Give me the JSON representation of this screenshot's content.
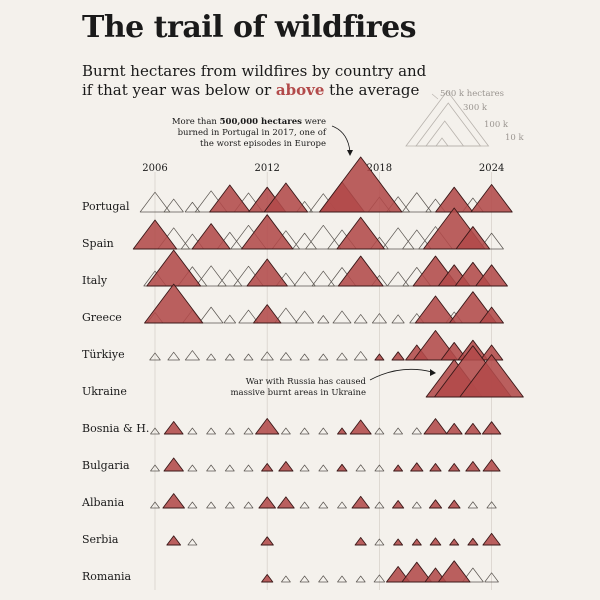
{
  "title": "The trail of wildfires",
  "subtitle_line1": "Burnt hectares from wildfires by country and",
  "subtitle_pre": "if that year was below or ",
  "subtitle_above": "above",
  "subtitle_post": " the average",
  "legend": {
    "items": [
      "500 k  hectares",
      "300 k",
      "100 k",
      "10 k"
    ],
    "values": [
      500000,
      300000,
      100000,
      10000
    ]
  },
  "annotations": [
    {
      "lines_pre": [
        "More than "
      ],
      "bold": "500,000 hectares",
      "lines_post": [
        " were",
        "burned in Portugal in 2017, one of",
        "the worst episodes in Europe"
      ]
    },
    {
      "lines": [
        "War with Russia has caused",
        "massive burnt areas in Ukraine"
      ]
    }
  ],
  "colors": {
    "above": "#b24a4a",
    "above_stroke": "#3a1818",
    "below_stroke": "#5a5550",
    "grid": "#d8d3cc"
  },
  "chart_data": {
    "type": "area",
    "x_ticks": [
      2006,
      2012,
      2018,
      2024
    ],
    "years": [
      2006,
      2007,
      2008,
      2009,
      2010,
      2011,
      2012,
      2013,
      2014,
      2015,
      2016,
      2017,
      2018,
      2019,
      2020,
      2021,
      2022,
      2023,
      2024
    ],
    "series": [
      {
        "name": "Portugal",
        "values": [
          70000,
          30000,
          17000,
          80000,
          130000,
          65000,
          110000,
          150000,
          20000,
          60000,
          160000,
          540000,
          40000,
          42000,
          67000,
          30000,
          110000,
          35000,
          135000
        ],
        "above": [
          0,
          0,
          0,
          0,
          1,
          0,
          1,
          1,
          0,
          0,
          1,
          1,
          0,
          0,
          0,
          0,
          1,
          0,
          1
        ]
      },
      {
        "name": "Spain",
        "values": [
          150000,
          80000,
          40000,
          115000,
          50000,
          100000,
          210000,
          60000,
          45000,
          100000,
          65000,
          180000,
          25000,
          80000,
          65000,
          90000,
          300000,
          90000,
          45000
        ],
        "above": [
          1,
          0,
          0,
          1,
          0,
          0,
          1,
          0,
          0,
          0,
          0,
          1,
          0,
          0,
          0,
          0,
          1,
          1,
          0
        ]
      },
      {
        "name": "Italy",
        "values": [
          40000,
          230000,
          66000,
          73000,
          46000,
          70000,
          130000,
          30000,
          36000,
          40000,
          61000,
          160000,
          20000,
          36000,
          62000,
          160000,
          80000,
          100000,
          80000
        ],
        "above": [
          0,
          1,
          0,
          0,
          0,
          0,
          1,
          0,
          0,
          0,
          0,
          1,
          0,
          0,
          0,
          1,
          1,
          1,
          1
        ]
      },
      {
        "name": "Greece",
        "values": [
          20000,
          270000,
          30000,
          45000,
          11000,
          30000,
          60000,
          40000,
          26000,
          10000,
          26000,
          13000,
          16000,
          12000,
          16000,
          130000,
          22000,
          175000,
          45000
        ],
        "above": [
          0,
          1,
          0,
          0,
          0,
          0,
          1,
          0,
          0,
          0,
          0,
          0,
          0,
          0,
          0,
          1,
          0,
          1,
          1
        ]
      },
      {
        "name": "Türkiye",
        "values": [
          9000,
          11000,
          16000,
          6500,
          2000,
          4000,
          12000,
          10000,
          3500,
          4000,
          9000,
          13000,
          6000,
          12000,
          40000,
          155000,
          55000,
          70000,
          40000
        ],
        "above": [
          0,
          0,
          0,
          0,
          0,
          0,
          0,
          0,
          0,
          0,
          0,
          0,
          1,
          1,
          1,
          1,
          1,
          1,
          1
        ]
      },
      {
        "name": "Ukraine",
        "values": [
          0,
          0,
          0,
          0,
          0,
          0,
          0,
          0,
          0,
          0,
          0,
          0,
          0,
          0,
          0,
          0,
          250000,
          470000,
          320000
        ],
        "above": [
          0,
          0,
          0,
          0,
          0,
          0,
          0,
          0,
          0,
          0,
          0,
          0,
          0,
          0,
          0,
          0,
          1,
          1,
          1
        ]
      },
      {
        "name": "Bosnia & H.",
        "values": [
          800,
          28000,
          1500,
          1500,
          1000,
          4000,
          43000,
          3000,
          1500,
          4000,
          6000,
          35000,
          1000,
          4000,
          7000,
          42000,
          20000,
          20000,
          27000
        ],
        "above": [
          0,
          1,
          0,
          0,
          0,
          0,
          1,
          0,
          0,
          0,
          1,
          1,
          0,
          0,
          0,
          1,
          1,
          1,
          1
        ]
      },
      {
        "name": "Bulgaria",
        "values": [
          1000,
          30000,
          5000,
          1200,
          600,
          1000,
          10000,
          16000,
          900,
          600,
          8000,
          7000,
          1100,
          6000,
          12000,
          10000,
          10000,
          16000,
          23000
        ],
        "above": [
          0,
          1,
          0,
          0,
          0,
          0,
          1,
          1,
          0,
          0,
          1,
          0,
          0,
          1,
          1,
          1,
          1,
          1,
          1
        ]
      },
      {
        "name": "Albania",
        "values": [
          700,
          37000,
          1200,
          800,
          3500,
          2000,
          22000,
          22000,
          6000,
          1000,
          6500,
          24000,
          3300,
          10000,
          6000,
          12000,
          11000,
          7000,
          7000
        ],
        "above": [
          0,
          1,
          0,
          0,
          0,
          0,
          1,
          1,
          0,
          0,
          0,
          1,
          0,
          1,
          0,
          1,
          1,
          0,
          0
        ]
      },
      {
        "name": "Serbia",
        "values": [
          0,
          15000,
          1000,
          0,
          0,
          0,
          12000,
          0,
          0,
          0,
          0,
          10000,
          1000,
          3500,
          6000,
          9000,
          5000,
          8000,
          24000
        ],
        "above": [
          0,
          1,
          0,
          0,
          0,
          0,
          1,
          0,
          0,
          0,
          0,
          1,
          0,
          1,
          1,
          1,
          1,
          1,
          1
        ]
      },
      {
        "name": "Romania",
        "values": [
          0,
          0,
          0,
          0,
          0,
          0,
          10000,
          5000,
          6000,
          7000,
          5000,
          4500,
          9000,
          43000,
          70000,
          35000,
          80000,
          35000,
          15000
        ],
        "above": [
          0,
          0,
          0,
          0,
          0,
          0,
          1,
          0,
          0,
          0,
          0,
          0,
          0,
          1,
          1,
          1,
          1,
          0,
          0
        ]
      }
    ]
  }
}
